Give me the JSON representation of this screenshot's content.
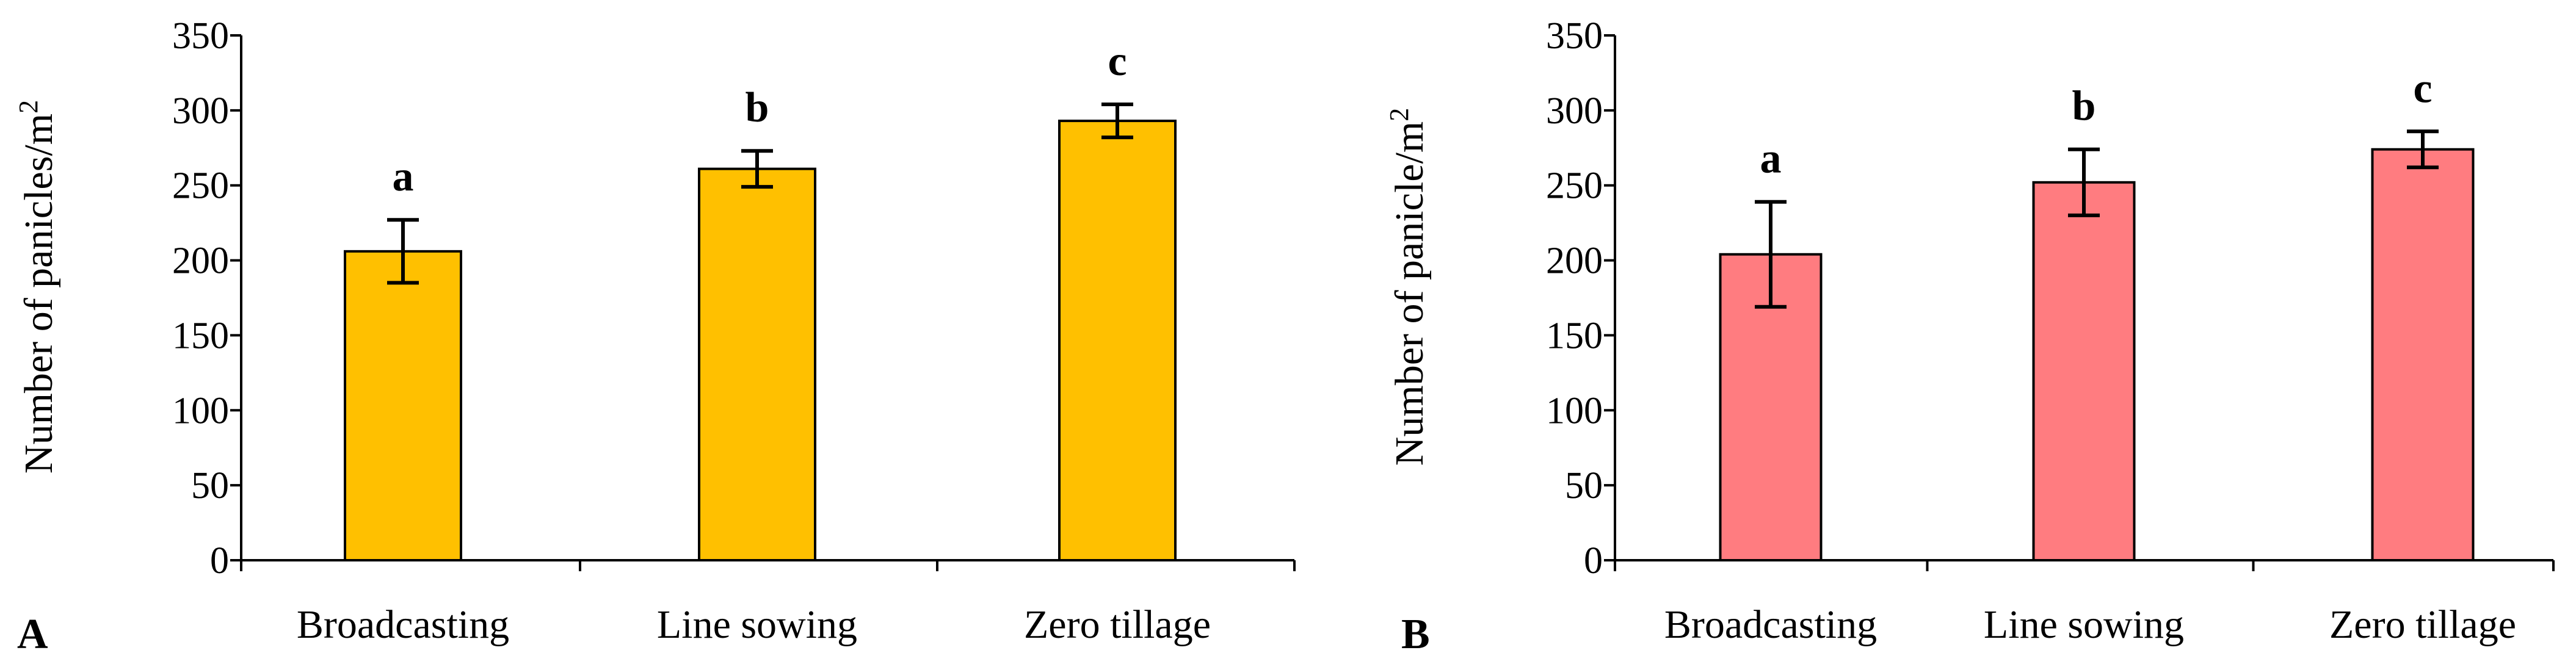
{
  "figure": {
    "panels": [
      "A",
      "B"
    ]
  },
  "chart_data": [
    {
      "type": "bar",
      "panel_label": "A",
      "title": "",
      "xlabel": "",
      "ylabel": "Number of panicles/m",
      "ylabel_superscript": "2",
      "categories": [
        "Broadcasting",
        "Line sowing",
        "Zero tillage"
      ],
      "values": [
        206,
        261,
        293
      ],
      "error": [
        21,
        12,
        11
      ],
      "significance": [
        "a",
        "b",
        "c"
      ],
      "ylim": [
        0,
        350
      ],
      "yticks": [
        0,
        50,
        100,
        150,
        200,
        250,
        300,
        350
      ],
      "bar_color": "#FFC000",
      "grid": false
    },
    {
      "type": "bar",
      "panel_label": "B",
      "title": "",
      "xlabel": "",
      "ylabel": "Number of panicle/m",
      "ylabel_superscript": "2",
      "categories": [
        "Broadcasting",
        "Line sowing",
        "Zero tillage"
      ],
      "values": [
        204,
        252,
        274
      ],
      "error": [
        35,
        22,
        12
      ],
      "significance": [
        "a",
        "b",
        "c"
      ],
      "ylim": [
        0,
        350
      ],
      "yticks": [
        0,
        50,
        100,
        150,
        200,
        250,
        300,
        350
      ],
      "bar_color": "#FF7C80",
      "grid": false
    }
  ]
}
